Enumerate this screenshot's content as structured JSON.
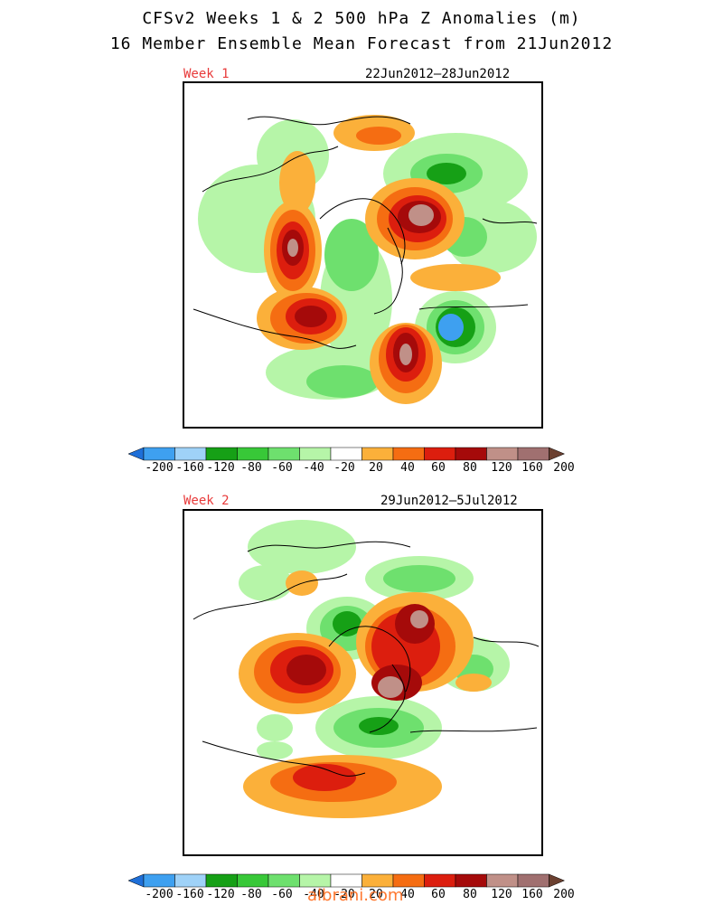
{
  "header": {
    "title_line1": "CFSv2 Weeks 1 & 2 500 hPa Z Anomalies (m)",
    "title_line2": "16 Member Ensemble Mean Forecast from 21Jun2012"
  },
  "panels": [
    {
      "week_label": "Week 1",
      "date_range": "22Jun2012—28Jun2012"
    },
    {
      "week_label": "Week 2",
      "date_range": "29Jun2012—5Jul2012"
    }
  ],
  "colorbar": {
    "labels": [
      "-200",
      "-160",
      "-120",
      "-80",
      "-60",
      "-40",
      "-20",
      "20",
      "40",
      "60",
      "80",
      "120",
      "160",
      "200"
    ],
    "colors": [
      "#1e6fd8",
      "#3ea0f0",
      "#9fd2f8",
      "#16a016",
      "#38c838",
      "#6ee06e",
      "#b6f5a8",
      "#ffffff",
      "#fbb03a",
      "#f56d12",
      "#dc1e0e",
      "#a50a0a",
      "#c09088",
      "#a07070",
      "#6b4030"
    ]
  },
  "watermark": "albrani.com"
}
